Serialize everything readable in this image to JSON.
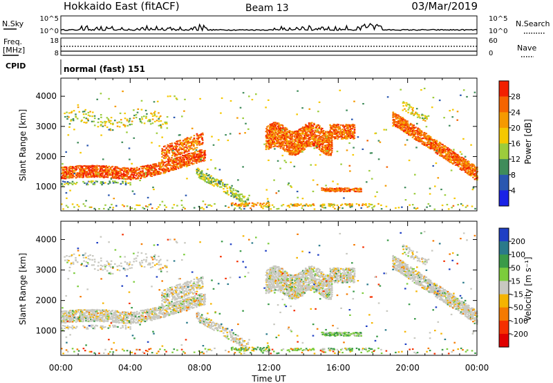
{
  "header": {
    "site": "Hokkaido East (fitACF)",
    "beam": "Beam 13",
    "date": "03/Mar/2019"
  },
  "top_panels": {
    "nsky_label": "N.Sky",
    "nsky_ticks": [
      "10^5",
      "10^0"
    ],
    "nsearch_label": "N.Search",
    "nsearch_ticks": [
      "10^5",
      "10^0"
    ],
    "freq_label_1": "Freq.",
    "freq_label_2": "[MHz]",
    "freq_ticks": [
      "18",
      "8"
    ],
    "nave_label": "Nave",
    "nave_ticks": [
      "60",
      "0"
    ],
    "cpid_label": "CPID",
    "cpid_text": "normal (fast) 151"
  },
  "chart_data": [
    {
      "type": "heatmap",
      "title": "",
      "xlabel": "",
      "ylabel": "Slant Range [km]",
      "ylim": [
        200,
        4600
      ],
      "yticks": [
        "1000",
        "2000",
        "3000",
        "4000"
      ],
      "colorbar": {
        "label": "Power [dB]",
        "tick_labels": [
          "4",
          "8",
          "12",
          "16",
          "20",
          "24",
          "28"
        ],
        "colors": [
          "#1a22e6",
          "#2a57b0",
          "#3f8c5a",
          "#9ccc3c",
          "#f5c800",
          "#f59a00",
          "#f56400",
          "#f22000"
        ]
      }
    },
    {
      "type": "heatmap",
      "title": "",
      "xlabel": "Time UT",
      "ylabel": "Slant Range [km]",
      "ylim": [
        200,
        4600
      ],
      "yticks": [
        "1000",
        "2000",
        "3000",
        "4000"
      ],
      "xticks": [
        "00:00",
        "04:00",
        "08:00",
        "12:00",
        "16:00",
        "20:00",
        "00:00"
      ],
      "colorbar": {
        "label": "Velocity [m s⁻¹]",
        "tick_labels": [
          "200",
          "100",
          "50",
          "15",
          "-15",
          "-50",
          "-100",
          "-200"
        ],
        "colors": [
          "#1f3fc4",
          "#2a7a8a",
          "#3a9a48",
          "#7ccc3c",
          "#c8c8c0",
          "#f5b400",
          "#f57a00",
          "#f53000",
          "#e00000"
        ]
      }
    }
  ]
}
